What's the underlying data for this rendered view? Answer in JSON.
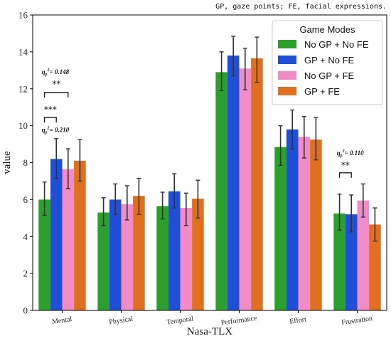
{
  "caption_note": "GP, gaze points; FE, facial expressions.",
  "chart_data": {
    "type": "bar",
    "title": "",
    "xlabel": "Nasa-TLX",
    "ylabel": "value",
    "ylim": [
      0,
      16
    ],
    "yticks": [
      0,
      2,
      4,
      6,
      8,
      10,
      12,
      14,
      16
    ],
    "categories": [
      "Mental",
      "Physical",
      "Temporal",
      "Performance",
      "Effort",
      "Frustration"
    ],
    "legend": {
      "title": "Game Modes",
      "placement": "top-right"
    },
    "series": [
      {
        "name": "No GP + No FE",
        "color": "#2ca02c",
        "values": [
          6.0,
          5.3,
          5.65,
          12.9,
          8.85,
          5.25
        ],
        "err_low": [
          5.15,
          4.6,
          4.95,
          11.9,
          7.85,
          4.35
        ],
        "err_high": [
          6.95,
          6.1,
          6.4,
          14.0,
          10.0,
          6.3
        ]
      },
      {
        "name": "GP + No FE",
        "color": "#1f4fd6",
        "values": [
          8.2,
          6.0,
          6.45,
          13.8,
          9.8,
          5.2
        ],
        "err_low": [
          7.15,
          5.2,
          5.55,
          12.7,
          8.75,
          4.25
        ],
        "err_high": [
          9.3,
          6.85,
          7.4,
          14.85,
          10.85,
          6.25
        ]
      },
      {
        "name": "No GP + FE",
        "color": "#f28cc8",
        "values": [
          7.65,
          5.75,
          5.55,
          13.1,
          9.4,
          5.95
        ],
        "err_low": [
          6.6,
          4.9,
          4.6,
          11.95,
          8.25,
          5.05
        ],
        "err_high": [
          8.75,
          6.75,
          6.35,
          14.2,
          10.5,
          6.85
        ]
      },
      {
        "name": "GP + FE",
        "color": "#e07020",
        "values": [
          8.1,
          6.2,
          6.05,
          13.65,
          9.25,
          4.65
        ],
        "err_low": [
          7.0,
          5.2,
          5.0,
          12.35,
          8.15,
          3.75
        ],
        "err_high": [
          9.25,
          7.15,
          7.05,
          14.8,
          10.45,
          5.55
        ]
      }
    ],
    "annotations": [
      {
        "category": "Mental",
        "from_series": 0,
        "to_series": 1,
        "stars": "***",
        "eta": "η",
        "eta_sub": "p",
        "eta_sup": "2",
        "eta_text": "= 0.210"
      },
      {
        "category": "Mental",
        "from_series": 0,
        "to_series": 2,
        "stars": "**",
        "eta": "η",
        "eta_sub": "p",
        "eta_sup": "2",
        "eta_text": "= 0.148"
      },
      {
        "category": "Frustration",
        "from_series": 0,
        "to_series": 1,
        "stars": "**",
        "eta": "η",
        "eta_sub": "p",
        "eta_sup": "2",
        "eta_text": "= 0.110"
      }
    ]
  }
}
